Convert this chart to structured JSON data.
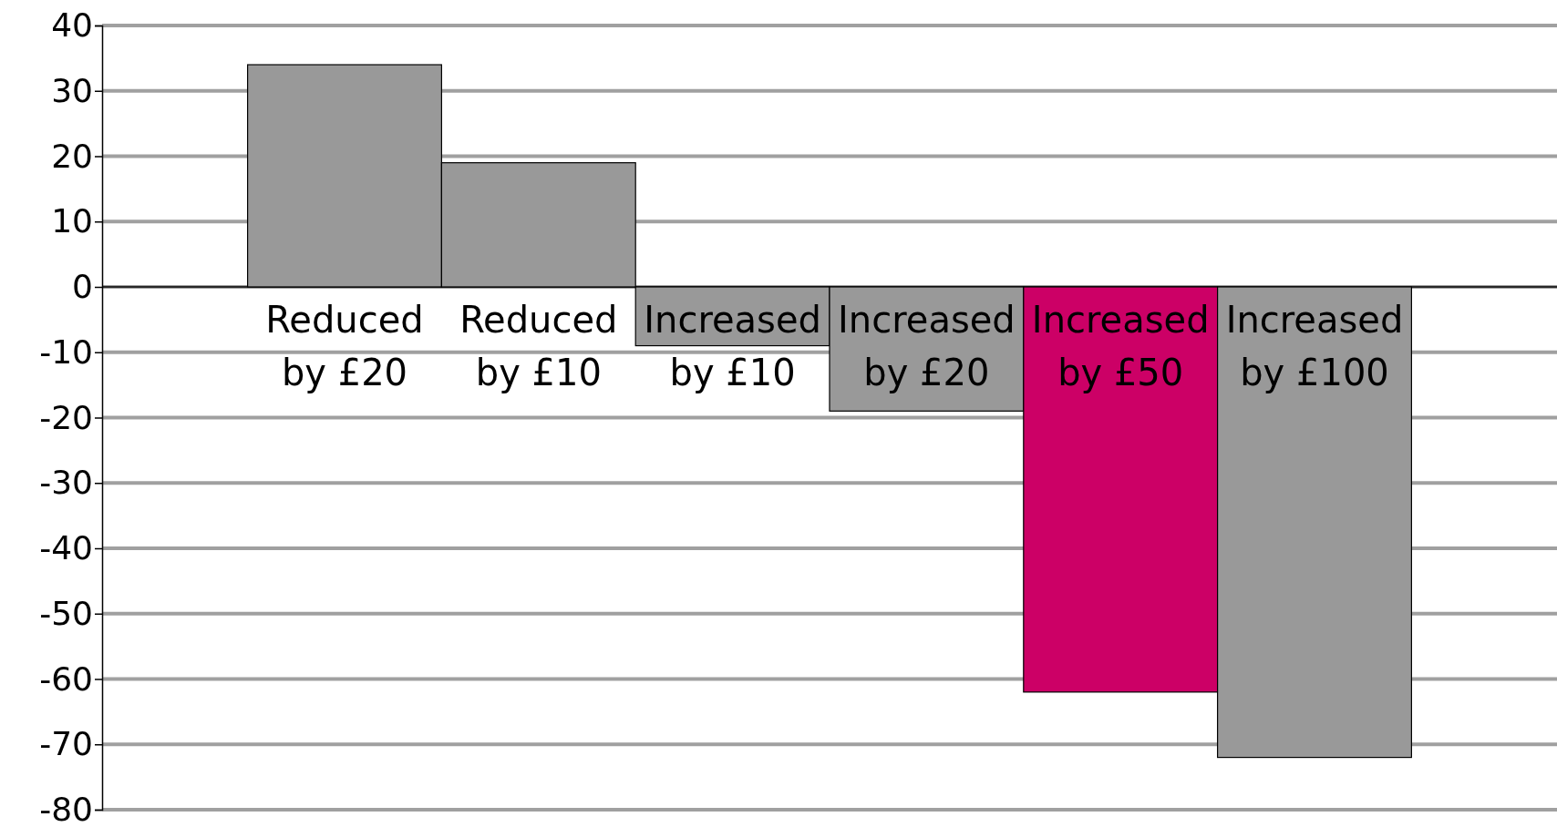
{
  "chart_data": {
    "type": "bar",
    "categories": [
      "Reduced by £20",
      "Reduced by £10",
      "Increased by £10",
      "Increased by £20",
      "Increased by £50",
      "Increased by £100"
    ],
    "values": [
      34,
      19,
      -9,
      -19,
      -62,
      -72
    ],
    "colors": [
      "#999999",
      "#999999",
      "#999999",
      "#999999",
      "#cc0066",
      "#999999"
    ],
    "ylim": [
      -80,
      40
    ],
    "yticks": [
      -80,
      -70,
      -60,
      -50,
      -40,
      -30,
      -20,
      -10,
      0,
      10,
      20,
      30,
      40
    ],
    "grid": "y"
  }
}
